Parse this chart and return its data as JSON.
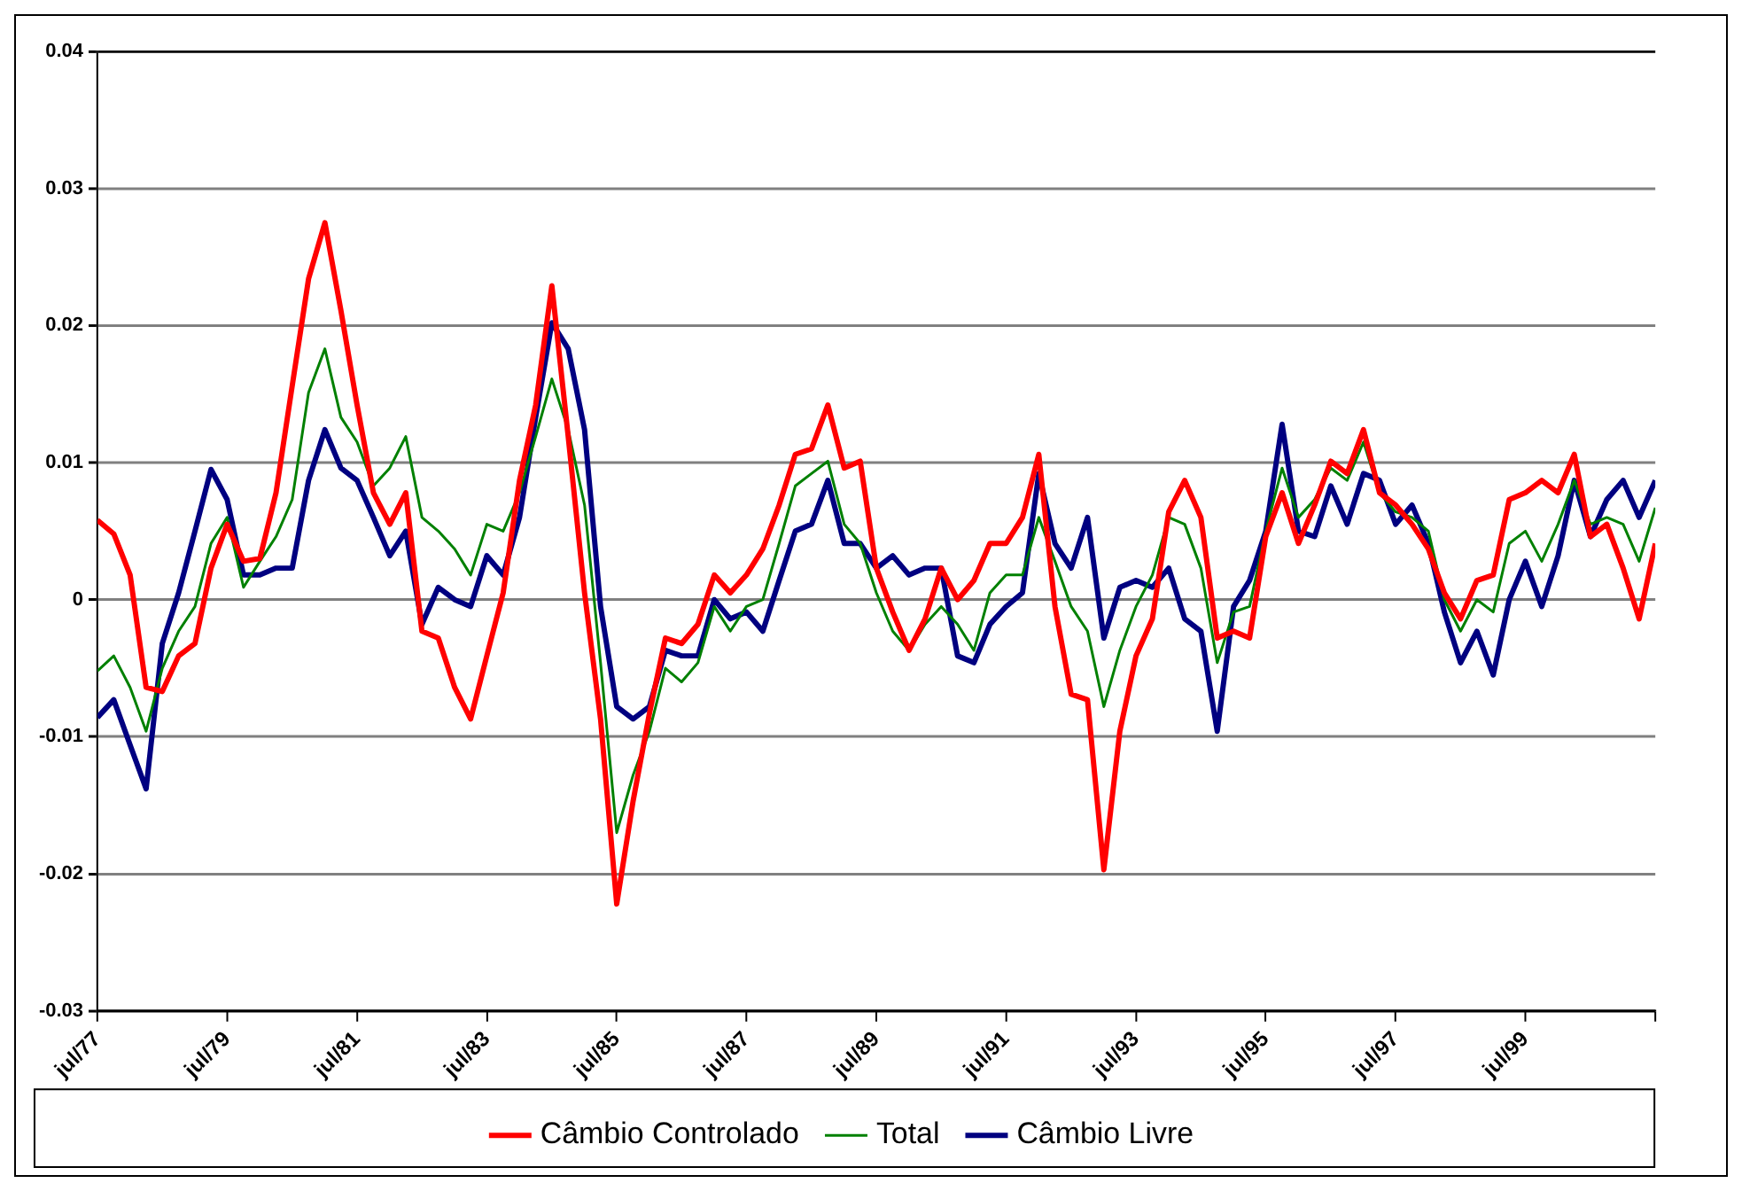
{
  "chart_data": {
    "type": "line",
    "x": [
      "1977-07",
      "1977-10",
      "1978-01",
      "1978-04",
      "1978-07",
      "1978-10",
      "1979-01",
      "1979-04",
      "1979-07",
      "1979-10",
      "1980-01",
      "1980-04",
      "1980-07",
      "1980-10",
      "1981-01",
      "1981-04",
      "1981-07",
      "1981-10",
      "1982-01",
      "1982-04",
      "1982-07",
      "1982-10",
      "1983-01",
      "1983-04",
      "1983-07",
      "1983-10",
      "1984-01",
      "1984-04",
      "1984-07",
      "1984-10",
      "1985-01",
      "1985-04",
      "1985-07",
      "1985-10",
      "1986-01",
      "1986-04",
      "1986-07",
      "1986-10",
      "1987-01",
      "1987-04",
      "1987-07",
      "1987-10",
      "1988-01",
      "1988-04",
      "1988-07",
      "1988-10",
      "1989-01",
      "1989-04",
      "1989-07",
      "1989-10",
      "1990-01",
      "1990-04",
      "1990-07",
      "1990-10",
      "1991-01",
      "1991-04",
      "1991-07",
      "1991-10",
      "1992-01",
      "1992-04",
      "1992-07",
      "1992-10",
      "1993-01",
      "1993-04",
      "1993-07",
      "1993-10",
      "1994-01",
      "1994-04",
      "1994-07",
      "1994-10",
      "1995-01",
      "1995-04",
      "1995-07",
      "1995-10",
      "1996-01",
      "1996-04",
      "1996-07",
      "1996-10",
      "1997-01",
      "1997-04",
      "1997-07",
      "1997-10",
      "1998-01",
      "1998-04",
      "1998-07",
      "1998-10",
      "1999-01",
      "1999-04",
      "1999-07",
      "1999-10",
      "2000-01",
      "2000-04",
      "2000-07",
      "2000-10",
      "2001-01",
      "2001-04",
      "2001-07"
    ],
    "series": [
      {
        "name": "Câmbio Controlado",
        "color": "#ff0000",
        "values": [
          0.0058,
          0.0048,
          0.0018,
          -0.0064,
          -0.0067,
          -0.0041,
          -0.0032,
          0.0023,
          0.0055,
          0.0028,
          0.003,
          0.0078,
          0.0156,
          0.0234,
          0.0275,
          0.0211,
          0.0142,
          0.0078,
          0.0055,
          0.0078,
          -0.0023,
          -0.0028,
          -0.0064,
          -0.0087,
          -0.0041,
          0.0005,
          0.0087,
          0.0142,
          0.0229,
          0.0119,
          0.0005,
          -0.0087,
          -0.0222,
          -0.0147,
          -0.0083,
          -0.0028,
          -0.0032,
          -0.0018,
          0.0018,
          0.0005,
          0.0018,
          0.0037,
          0.0069,
          0.0106,
          0.011,
          0.0142,
          0.0096,
          0.0101,
          0.0023,
          -0.0009,
          -0.0037,
          -0.0014,
          0.0023,
          0.0,
          0.0014,
          0.0041,
          0.0041,
          0.006,
          0.0106,
          -0.0005,
          -0.0069,
          -0.0073,
          -0.0197,
          -0.0096,
          -0.0041,
          -0.0014,
          0.0064,
          0.0087,
          0.006,
          -0.0028,
          -0.0023,
          -0.0028,
          0.0046,
          0.0078,
          0.0041,
          0.0069,
          0.0101,
          0.0092,
          0.0124,
          0.0078,
          0.0069,
          0.0055,
          0.0037,
          0.0005,
          -0.0014,
          0.0014,
          0.0018,
          0.0073,
          0.0078,
          0.0087,
          0.0078,
          0.0106,
          0.0046,
          0.0055,
          0.0023,
          -0.0014,
          0.0041
        ]
      },
      {
        "name": "Total",
        "color": "#008000",
        "values": [
          -0.0052,
          -0.0041,
          -0.0064,
          -0.0096,
          -0.005,
          -0.0023,
          -0.0005,
          0.0041,
          0.006,
          0.0009,
          0.0028,
          0.0046,
          0.0073,
          0.0151,
          0.0183,
          0.0133,
          0.0115,
          0.0083,
          0.0096,
          0.0119,
          0.006,
          0.005,
          0.0037,
          0.0018,
          0.0055,
          0.005,
          0.0078,
          0.0119,
          0.0161,
          0.0124,
          0.0069,
          -0.0046,
          -0.017,
          -0.0128,
          -0.0096,
          -0.005,
          -0.006,
          -0.0046,
          -0.0005,
          -0.0023,
          -0.0005,
          0.0,
          0.0041,
          0.0083,
          0.0092,
          0.0101,
          0.0055,
          0.0041,
          0.0005,
          -0.0023,
          -0.0037,
          -0.0018,
          -0.0005,
          -0.0018,
          -0.0037,
          0.0005,
          0.0018,
          0.0018,
          0.006,
          0.0028,
          -0.0005,
          -0.0023,
          -0.0078,
          -0.0037,
          -0.0005,
          0.0018,
          0.006,
          0.0055,
          0.0023,
          -0.0046,
          -0.0009,
          -0.0005,
          0.005,
          0.0096,
          0.006,
          0.0073,
          0.0096,
          0.0087,
          0.0115,
          0.0078,
          0.0064,
          0.006,
          0.005,
          0.0,
          -0.0023,
          0.0,
          -0.0009,
          0.0041,
          0.005,
          0.0028,
          0.0055,
          0.0087,
          0.0055,
          0.006,
          0.0055,
          0.0028,
          0.0067
        ]
      },
      {
        "name": "Câmbio Livre",
        "color": "#000080",
        "values": [
          -0.0086,
          -0.0073,
          -0.0106,
          -0.0138,
          -0.0032,
          0.0005,
          0.005,
          0.0095,
          0.0073,
          0.0018,
          0.0018,
          0.0023,
          0.0023,
          0.0087,
          0.0124,
          0.0096,
          0.0087,
          0.006,
          0.0032,
          0.005,
          -0.0018,
          0.0009,
          0.0,
          -0.0005,
          0.0032,
          0.0018,
          0.006,
          0.0133,
          0.0202,
          0.0183,
          0.0124,
          -0.0005,
          -0.0078,
          -0.0087,
          -0.0078,
          -0.0037,
          -0.0041,
          -0.0041,
          0.0,
          -0.0014,
          -0.0009,
          -0.0023,
          0.0014,
          0.005,
          0.0055,
          0.0087,
          0.0041,
          0.0041,
          0.0023,
          0.0032,
          0.0018,
          0.0023,
          0.0023,
          -0.0041,
          -0.0046,
          -0.0018,
          -0.0005,
          0.0005,
          0.0092,
          0.0041,
          0.0023,
          0.006,
          -0.0028,
          0.0009,
          0.0014,
          0.0009,
          0.0023,
          -0.0014,
          -0.0023,
          -0.0096,
          -0.0005,
          0.0014,
          0.005,
          0.0128,
          0.005,
          0.0046,
          0.0083,
          0.0055,
          0.0092,
          0.0087,
          0.0055,
          0.0069,
          0.0041,
          -0.0009,
          -0.0046,
          -0.0023,
          -0.0055,
          0.0,
          0.0028,
          -0.0005,
          0.0032,
          0.0087,
          0.0046,
          0.0073,
          0.0087,
          0.006,
          0.0087
        ]
      }
    ],
    "xlim": [
      "1977-07",
      "2001-07"
    ],
    "xticks": [
      {
        "value": "1977-07",
        "label": "jul/77"
      },
      {
        "value": "1979-07",
        "label": "jul/79"
      },
      {
        "value": "1981-07",
        "label": "jul/81"
      },
      {
        "value": "1983-07",
        "label": "jul/83"
      },
      {
        "value": "1985-07",
        "label": "jul/85"
      },
      {
        "value": "1987-07",
        "label": "jul/87"
      },
      {
        "value": "1989-07",
        "label": "jul/89"
      },
      {
        "value": "1991-07",
        "label": "jul/91"
      },
      {
        "value": "1993-07",
        "label": "jul/93"
      },
      {
        "value": "1995-07",
        "label": "jul/95"
      },
      {
        "value": "1997-07",
        "label": "jul/97"
      },
      {
        "value": "1999-07",
        "label": "jul/99"
      },
      {
        "value": "2001-07",
        "label": null
      }
    ],
    "ylim": [
      -0.03,
      0.04
    ],
    "yticks": [
      -0.03,
      -0.02,
      -0.01,
      0,
      0.01,
      0.02,
      0.03,
      0.04
    ],
    "grid": "y",
    "legend": "bottom",
    "marker": "none",
    "line_style": "solid"
  }
}
